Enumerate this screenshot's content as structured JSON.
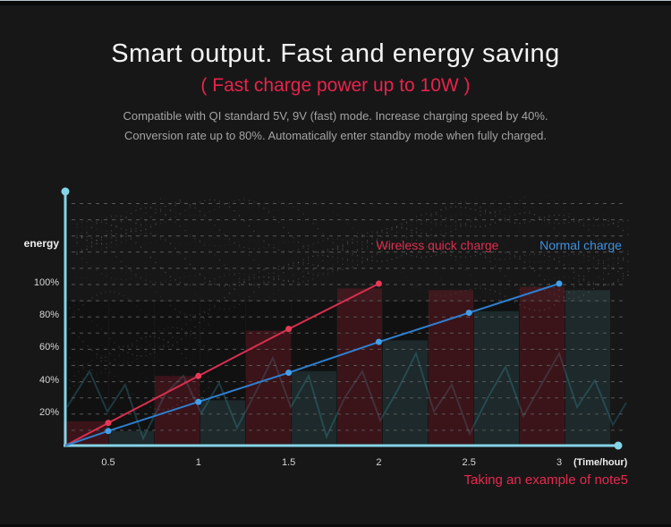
{
  "header": {
    "title": "Smart output. Fast and energy saving",
    "subtitle": "( Fast charge power up to 10W )",
    "description_line1": "Compatible with  QI standard 5V, 9V (fast) mode. Increase charging speed by  40%.",
    "description_line2": "Conversion rate up to 80%. Automatically enter standby mode when fully charged."
  },
  "chart_data": {
    "type": "line",
    "title": "",
    "xlabel": "(Time/hour)",
    "ylabel": "energy",
    "x_tick_labels": [
      "0.5",
      "1",
      "1.5",
      "2",
      "2.5",
      "3"
    ],
    "y_tick_labels": [
      "20%",
      "40%",
      "60%",
      "80%",
      "100%"
    ],
    "y_tick_values": [
      20,
      40,
      60,
      80,
      100
    ],
    "ylim": [
      0,
      100
    ],
    "grid": "dashed horizontal every 10%",
    "legend_position": "top-right inside plot",
    "series": [
      {
        "name": "Wireless quick charge",
        "x": [
          0,
          0.5,
          1,
          1.5,
          2
        ],
        "values": [
          0,
          14,
          43,
          72,
          100
        ],
        "color": "#d92f4f",
        "dot_color": "#e63a57"
      },
      {
        "name": "Normal charge",
        "x": [
          0,
          0.5,
          1,
          1.5,
          2,
          2.5,
          3
        ],
        "values": [
          0,
          9,
          27,
          45,
          64,
          82,
          100
        ],
        "color": "#2f7fd0",
        "dot_color": "#41a0ea"
      }
    ],
    "background_bars": [
      {
        "group": "wireless",
        "value": 15
      },
      {
        "group": "normal",
        "value": 9
      },
      {
        "group": "wireless",
        "value": 43
      },
      {
        "group": "normal",
        "value": 28
      },
      {
        "group": "wireless",
        "value": 71
      },
      {
        "group": "normal",
        "value": 46
      },
      {
        "group": "wireless",
        "value": 97
      },
      {
        "group": "normal",
        "value": 65
      },
      {
        "group": "wireless",
        "value": 96
      },
      {
        "group": "normal",
        "value": 83
      },
      {
        "group": "wireless",
        "value": 98
      },
      {
        "group": "normal",
        "value": 96
      }
    ],
    "colors": {
      "axis": "#85d3e6",
      "grid": "#5d5d5d",
      "bar_wireless": "rgba(155,30,48,0.30)",
      "bar_normal": "rgba(90,160,165,0.17)",
      "bar_backdrop": "rgba(0,0,0,0.22)",
      "zigzag": "#1e4148",
      "particles": "#9a9a9a"
    },
    "footnote": "Taking an example of note5"
  }
}
